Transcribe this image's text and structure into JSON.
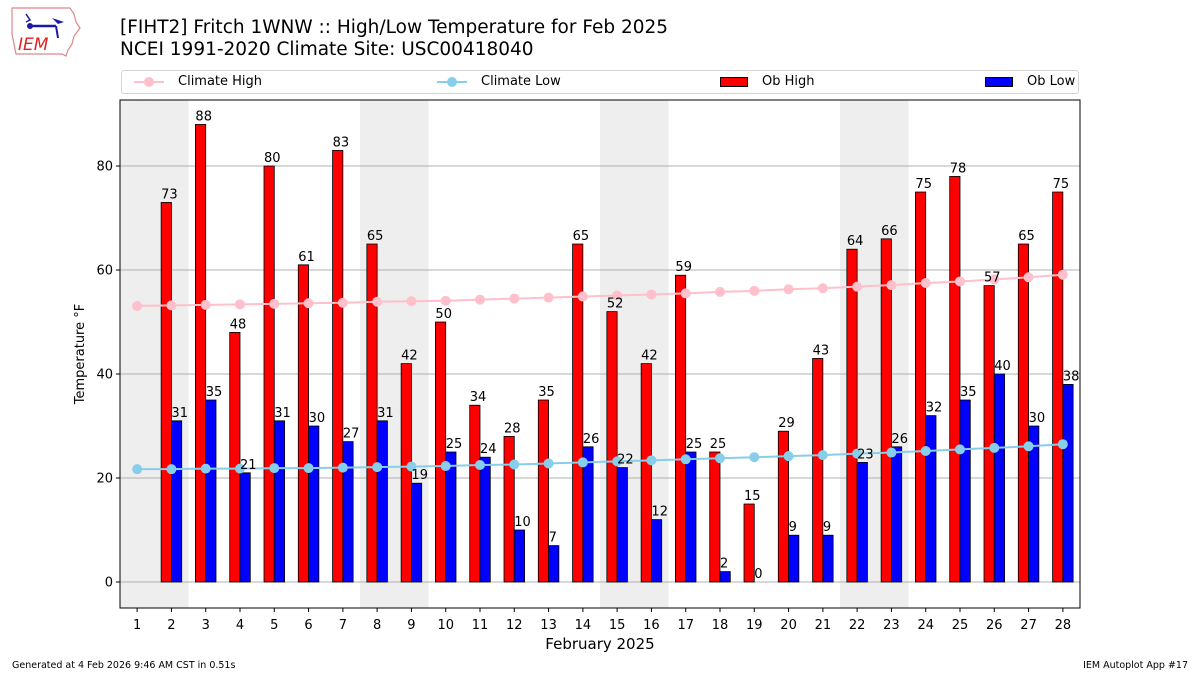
{
  "header": {
    "title_line1": "[FIHT2] Fritch 1WNW :: High/Low Temperature for Feb 2025",
    "title_line2": "NCEI 1991-2020 Climate Site: USC00418040",
    "logo_text": "IEM"
  },
  "legend": {
    "items": [
      {
        "label": "Climate High",
        "color": "#ffc0cb",
        "kind": "line"
      },
      {
        "label": "Climate Low",
        "color": "#87ceeb",
        "kind": "line"
      },
      {
        "label": "Ob High",
        "color": "#ff0000",
        "kind": "bar"
      },
      {
        "label": "Ob Low",
        "color": "#0000ff",
        "kind": "bar"
      }
    ]
  },
  "footer": {
    "generated": "Generated at 4 Feb 2026 9:46 AM CST in 0.51s",
    "app": "IEM Autoplot App #17"
  },
  "chart_data": {
    "type": "bar",
    "title": "[FIHT2] Fritch 1WNW :: High/Low Temperature for Feb 2025",
    "subtitle": "NCEI 1991-2020 Climate Site: USC00418040",
    "xlabel": "February 2025",
    "ylabel": "Temperature °F",
    "xlim": [
      0.5,
      28.5
    ],
    "ylim": [
      -5,
      92.7
    ],
    "yticks": [
      0,
      20,
      40,
      60,
      80
    ],
    "grid": "y",
    "legend_position": "top",
    "weekend_shading": [
      [
        1,
        2
      ],
      [
        8,
        9
      ],
      [
        15,
        16
      ],
      [
        22,
        23
      ]
    ],
    "categories": [
      1,
      2,
      3,
      4,
      5,
      6,
      7,
      8,
      9,
      10,
      11,
      12,
      13,
      14,
      15,
      16,
      17,
      18,
      19,
      20,
      21,
      22,
      23,
      24,
      25,
      26,
      27,
      28
    ],
    "series": [
      {
        "name": "Ob High",
        "type": "bar",
        "color": "#ff0000",
        "values": [
          null,
          73,
          88,
          48,
          80,
          61,
          83,
          65,
          42,
          50,
          34,
          28,
          35,
          65,
          52,
          42,
          59,
          25,
          15,
          29,
          43,
          64,
          66,
          75,
          78,
          57,
          65,
          75
        ]
      },
      {
        "name": "Ob Low",
        "type": "bar",
        "color": "#0000ff",
        "values": [
          null,
          31,
          35,
          21,
          31,
          30,
          27,
          31,
          19,
          25,
          24,
          10,
          7,
          26,
          22,
          12,
          25,
          2,
          0,
          9,
          9,
          23,
          26,
          32,
          35,
          40,
          30,
          38
        ]
      },
      {
        "name": "Climate High",
        "type": "line",
        "color": "#ffc0cb",
        "values": [
          53.1,
          53.2,
          53.3,
          53.4,
          53.5,
          53.6,
          53.7,
          53.9,
          54.0,
          54.1,
          54.3,
          54.5,
          54.7,
          54.9,
          55.1,
          55.3,
          55.5,
          55.8,
          56.0,
          56.3,
          56.5,
          56.8,
          57.1,
          57.5,
          57.8,
          58.2,
          58.6,
          59.1
        ]
      },
      {
        "name": "Climate Low",
        "type": "line",
        "color": "#87ceeb",
        "values": [
          21.7,
          21.7,
          21.8,
          21.8,
          21.9,
          21.9,
          22.0,
          22.1,
          22.2,
          22.3,
          22.5,
          22.6,
          22.8,
          23.0,
          23.2,
          23.4,
          23.6,
          23.8,
          24.0,
          24.2,
          24.4,
          24.7,
          24.9,
          25.2,
          25.5,
          25.8,
          26.1,
          26.5
        ]
      }
    ]
  }
}
